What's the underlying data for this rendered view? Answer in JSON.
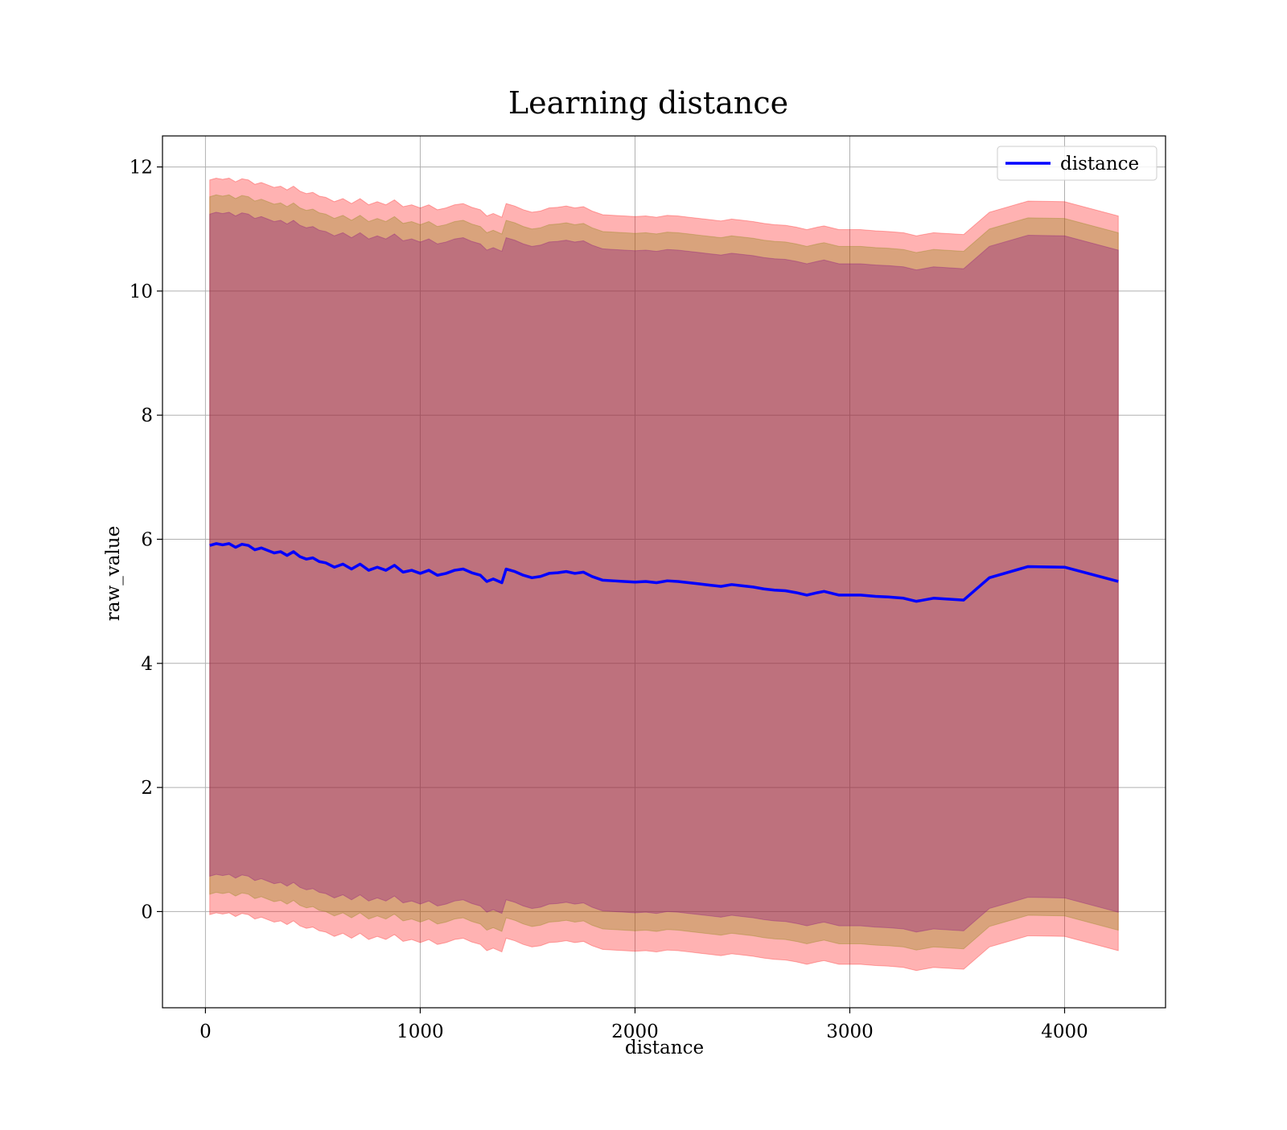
{
  "chart_data": {
    "type": "line",
    "title": "Learning distance",
    "xlabel": "distance",
    "ylabel": "raw_value",
    "xlim": [
      -200,
      4470
    ],
    "ylim": [
      -1.55,
      12.5
    ],
    "xticks": [
      0,
      1000,
      2000,
      3000,
      4000
    ],
    "yticks": [
      0,
      2,
      4,
      6,
      8,
      10,
      12
    ],
    "grid": true,
    "legend": {
      "position": "top-right",
      "entries": [
        "distance"
      ]
    },
    "series": [
      {
        "name": "distance",
        "color": "#0000ff",
        "x": [
          20,
          50,
          80,
          110,
          140,
          170,
          200,
          230,
          260,
          290,
          320,
          350,
          380,
          410,
          440,
          470,
          500,
          530,
          560,
          600,
          640,
          680,
          720,
          760,
          800,
          840,
          880,
          920,
          960,
          1000,
          1040,
          1080,
          1120,
          1160,
          1200,
          1240,
          1280,
          1310,
          1340,
          1380,
          1400,
          1440,
          1480,
          1520,
          1560,
          1600,
          1640,
          1680,
          1720,
          1760,
          1800,
          1850,
          1900,
          1950,
          2000,
          2050,
          2100,
          2150,
          2200,
          2250,
          2300,
          2350,
          2400,
          2450,
          2500,
          2550,
          2600,
          2650,
          2700,
          2750,
          2800,
          2850,
          2880,
          2950,
          3000,
          3050,
          3120,
          3180,
          3250,
          3310,
          3390,
          3530,
          3650,
          3830,
          4000,
          4250
        ],
        "values": [
          5.9,
          5.93,
          5.91,
          5.93,
          5.87,
          5.92,
          5.9,
          5.83,
          5.86,
          5.82,
          5.78,
          5.8,
          5.74,
          5.8,
          5.72,
          5.68,
          5.7,
          5.64,
          5.62,
          5.55,
          5.6,
          5.52,
          5.6,
          5.5,
          5.55,
          5.5,
          5.58,
          5.47,
          5.5,
          5.45,
          5.5,
          5.42,
          5.45,
          5.5,
          5.52,
          5.46,
          5.42,
          5.32,
          5.36,
          5.3,
          5.52,
          5.48,
          5.42,
          5.38,
          5.4,
          5.45,
          5.46,
          5.48,
          5.45,
          5.47,
          5.4,
          5.34,
          5.33,
          5.32,
          5.31,
          5.32,
          5.3,
          5.33,
          5.32,
          5.3,
          5.28,
          5.26,
          5.24,
          5.27,
          5.25,
          5.23,
          5.2,
          5.18,
          5.17,
          5.14,
          5.1,
          5.14,
          5.16,
          5.1,
          5.1,
          5.1,
          5.08,
          5.07,
          5.05,
          5.0,
          5.05,
          5.02,
          5.38,
          5.56,
          5.55,
          5.32
        ]
      }
    ],
    "bands": [
      {
        "color": "#ff0000",
        "opacity": 0.3,
        "lower_offset": -5.95,
        "upper_offset": 5.89
      },
      {
        "color": "#808000",
        "opacity": 0.3,
        "lower_offset": -5.62,
        "upper_offset": 5.62
      },
      {
        "color": "#800080",
        "opacity": 0.3,
        "lower_offset": -5.33,
        "upper_offset": 5.34
      }
    ]
  }
}
